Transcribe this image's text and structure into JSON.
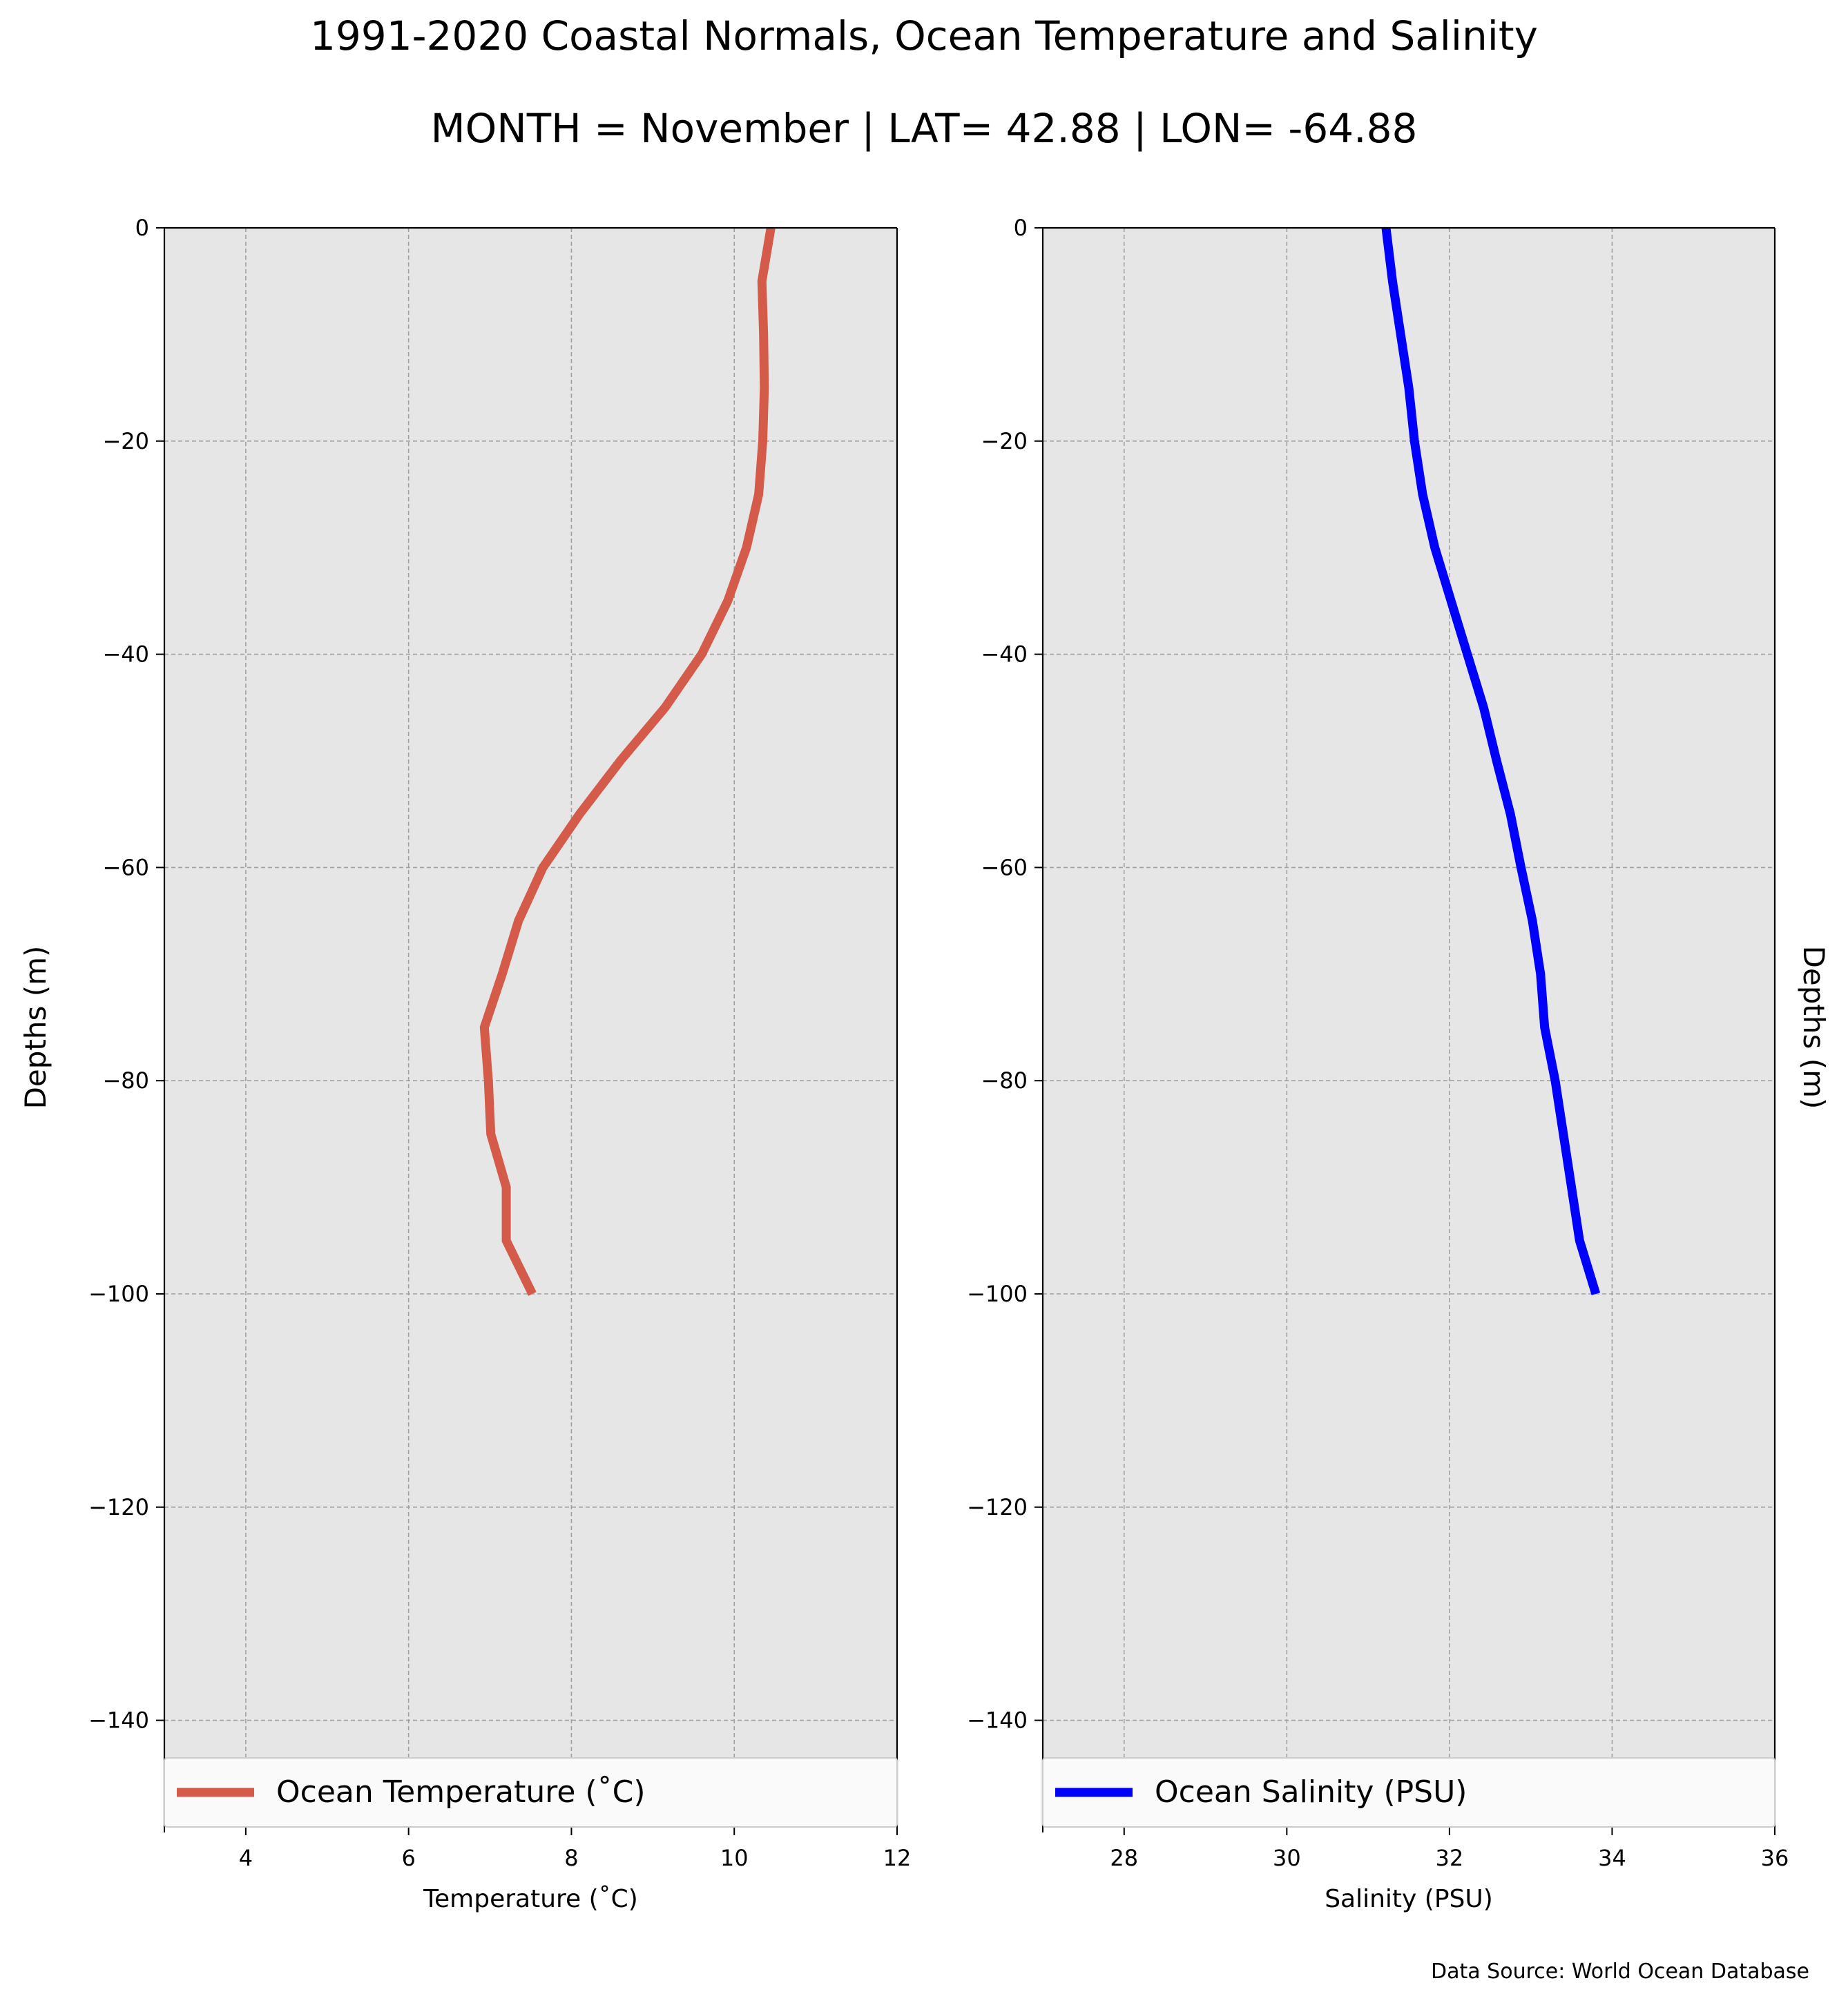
{
  "title": "1991-2020 Coastal Normals, Ocean Temperature and Salinity",
  "subtitle": "MONTH = November | LAT= 42.88 | LON= -64.88",
  "source": "Data Source: World Ocean Database",
  "colors": {
    "plot_background": "#e6e6e6",
    "grid": "#a0a0a0",
    "temperature_line": "#d45b4a",
    "salinity_line": "#0000ff"
  },
  "chart_data": [
    {
      "type": "line",
      "orientation": "profile",
      "xlabel": "Temperature ($^\\circ$C)",
      "ylabel": "Depths (m)",
      "ylabel_side": "left",
      "xlim": [
        3,
        12
      ],
      "ylim": [
        -150,
        0
      ],
      "xticks": [
        4,
        6,
        8,
        10,
        12
      ],
      "yticks": [
        0,
        -20,
        -40,
        -60,
        -80,
        -100,
        -120,
        -140
      ],
      "xtick_labels": [
        "4",
        "6",
        "8",
        "10",
        "12"
      ],
      "ytick_labels": [
        "0",
        "−20",
        "−40",
        "−60",
        "−80",
        "−100",
        "−120",
        "−140"
      ],
      "grid": true,
      "legend_placement": "lower-center",
      "series": [
        {
          "name": "Ocean Temperature ($^\\circ$C)",
          "color": "#d45b4a",
          "x": [
            10.45,
            10.34,
            10.36,
            10.37,
            10.35,
            10.3,
            10.15,
            9.92,
            9.6,
            9.15,
            8.6,
            8.1,
            7.65,
            7.35,
            7.15,
            6.93,
            6.98,
            7.01,
            7.2,
            7.2,
            7.52
          ],
          "y": [
            0,
            -5,
            -10,
            -15,
            -20,
            -25,
            -30,
            -35,
            -40,
            -45,
            -50,
            -55,
            -60,
            -65,
            -70,
            -75,
            -80,
            -85,
            -90,
            -95,
            -100
          ]
        }
      ]
    },
    {
      "type": "line",
      "orientation": "profile",
      "xlabel": "Salinity (PSU)",
      "ylabel": "Depths (m)",
      "ylabel_side": "right",
      "xlim": [
        27,
        36
      ],
      "ylim": [
        -150,
        0
      ],
      "xticks": [
        28,
        30,
        32,
        34,
        36
      ],
      "yticks": [
        0,
        -20,
        -40,
        -60,
        -80,
        -100,
        -120,
        -140
      ],
      "xtick_labels": [
        "28",
        "30",
        "32",
        "34",
        "36"
      ],
      "ytick_labels": [
        "0",
        "−20",
        "−40",
        "−60",
        "−80",
        "−100",
        "−120",
        "−140"
      ],
      "grid": true,
      "legend_placement": "lower-center",
      "series": [
        {
          "name": "Ocean Salinity (PSU)",
          "color": "#0000ff",
          "x": [
            31.22,
            31.3,
            31.4,
            31.5,
            31.57,
            31.67,
            31.82,
            32.02,
            32.22,
            32.42,
            32.58,
            32.75,
            32.88,
            33.02,
            33.12,
            33.17,
            33.3,
            33.4,
            33.5,
            33.6,
            33.8
          ],
          "y": [
            0,
            -5,
            -10,
            -15,
            -20,
            -25,
            -30,
            -35,
            -40,
            -45,
            -50,
            -55,
            -60,
            -65,
            -70,
            -75,
            -80,
            -85,
            -90,
            -95,
            -100
          ]
        }
      ]
    }
  ]
}
